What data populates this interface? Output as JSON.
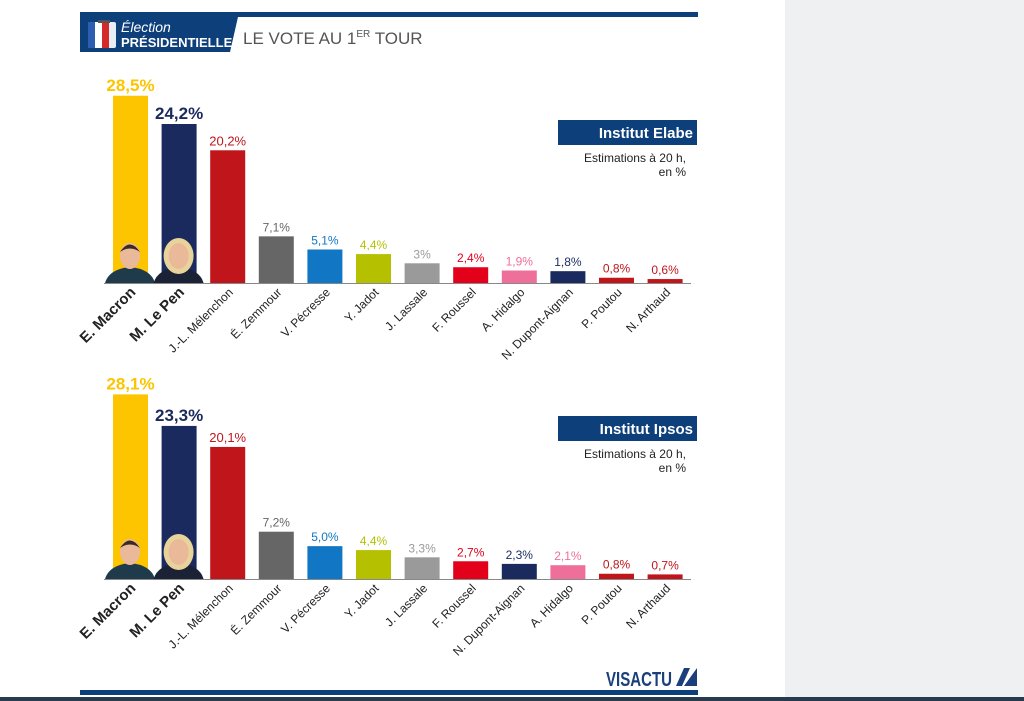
{
  "header": {
    "badge_line1": "Élection",
    "badge_line2": "PRÉSIDENTIELLE",
    "title": "LE VOTE AU 1",
    "title_sup": "ER",
    "title_end": " TOUR"
  },
  "footer": {
    "logo": "VISACTU"
  },
  "colors": {
    "brand": "#0d3f7a",
    "navy": "#1b2a5e"
  },
  "chart_data": [
    {
      "type": "bar",
      "title": "Institut Elabe",
      "subtitle1": "Estimations à 20 h,",
      "subtitle2": "en %",
      "ylim": [
        0,
        30
      ],
      "categories": [
        "E. Macron",
        "M. Le Pen",
        "J.-L. Mélenchon",
        "É. Zemmour",
        "V. Pécresse",
        "Y. Jadot",
        "J. Lassale",
        "F. Roussel",
        "A. Hidalgo",
        "N. Dupont-Aignan",
        "P. Poutou",
        "N. Arthaud"
      ],
      "values": [
        28.5,
        24.2,
        20.2,
        7.1,
        5.1,
        4.4,
        3,
        2.4,
        1.9,
        1.8,
        0.8,
        0.6
      ],
      "labels": [
        "28,5%",
        "24,2%",
        "20,2%",
        "7,1%",
        "5,1%",
        "4,4%",
        "3%",
        "2,4%",
        "1,9%",
        "1,8%",
        "0,8%",
        "0,6%"
      ],
      "colors": [
        "#fcc500",
        "#1b2a5e",
        "#c0151b",
        "#666666",
        "#1177c4",
        "#b5c000",
        "#9a9a9a",
        "#e2001a",
        "#ee6f9a",
        "#1b2a5e",
        "#c0151b",
        "#c0151b"
      ]
    },
    {
      "type": "bar",
      "title": "Institut Ipsos",
      "subtitle1": "Estimations à 20 h,",
      "subtitle2": "en %",
      "ylim": [
        0,
        30
      ],
      "categories": [
        "E. Macron",
        "M. Le Pen",
        "J.-L. Mélenchon",
        "É. Zemmour",
        "V. Pécresse",
        "Y. Jadot",
        "J. Lassale",
        "F. Roussel",
        "N. Dupont-Aignan",
        "A. Hidalgo",
        "P. Poutou",
        "N. Arthaud"
      ],
      "values": [
        28.1,
        23.3,
        20.1,
        7.2,
        5.0,
        4.4,
        3.3,
        2.7,
        2.3,
        2.1,
        0.8,
        0.7
      ],
      "labels": [
        "28,1%",
        "23,3%",
        "20,1%",
        "7,2%",
        "5,0%",
        "4,4%",
        "3,3%",
        "2,7%",
        "2,3%",
        "2,1%",
        "0,8%",
        "0,7%"
      ],
      "colors": [
        "#fcc500",
        "#1b2a5e",
        "#c0151b",
        "#666666",
        "#1177c4",
        "#b5c000",
        "#9a9a9a",
        "#e2001a",
        "#1b2a5e",
        "#ee6f9a",
        "#c0151b",
        "#c0151b"
      ]
    }
  ]
}
